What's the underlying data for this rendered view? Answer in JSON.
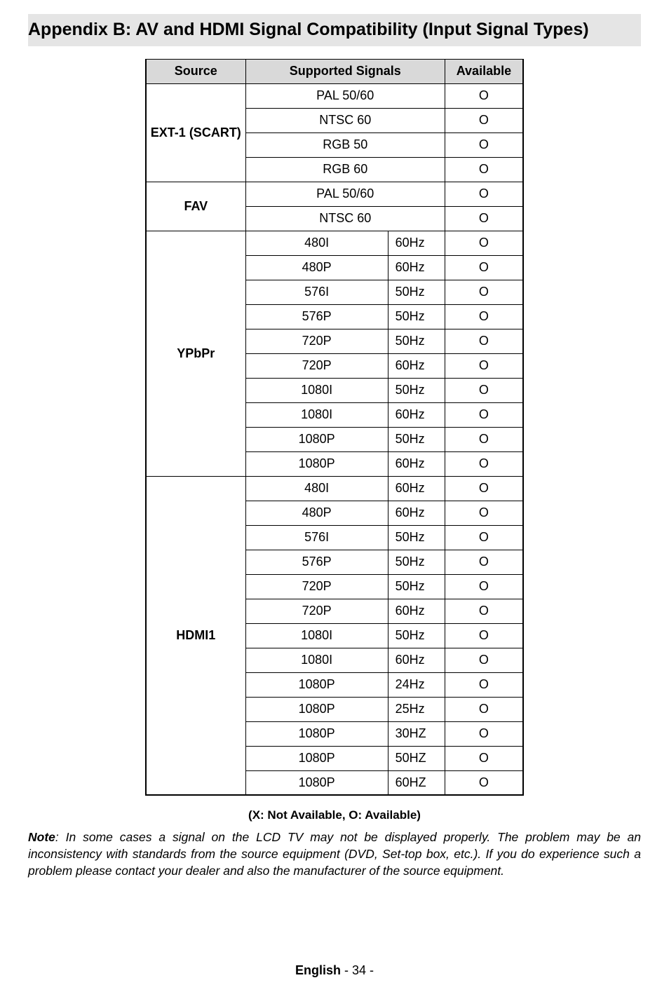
{
  "title": "Appendix B: AV and HDMI Signal Compatibility (Input Signal Types)",
  "headers": {
    "source": "Source",
    "signals": "Supported Signals",
    "available": "Available"
  },
  "sources": [
    {
      "name": "EXT-1 (SCART)",
      "rows": [
        {
          "sig": "PAL 50/60",
          "hz": "",
          "avail": "O",
          "span": true
        },
        {
          "sig": "NTSC 60",
          "hz": "",
          "avail": "O",
          "span": true
        },
        {
          "sig": "RGB 50",
          "hz": "",
          "avail": "O",
          "span": true
        },
        {
          "sig": "RGB 60",
          "hz": "",
          "avail": "O",
          "span": true
        }
      ]
    },
    {
      "name": "FAV",
      "rows": [
        {
          "sig": "PAL 50/60",
          "hz": "",
          "avail": "O",
          "span": true
        },
        {
          "sig": "NTSC 60",
          "hz": "",
          "avail": "O",
          "span": true
        }
      ]
    },
    {
      "name": "YPbPr",
      "rows": [
        {
          "sig": "480I",
          "hz": "60Hz",
          "avail": "O"
        },
        {
          "sig": "480P",
          "hz": "60Hz",
          "avail": "O"
        },
        {
          "sig": "576I",
          "hz": "50Hz",
          "avail": "O"
        },
        {
          "sig": "576P",
          "hz": "50Hz",
          "avail": "O"
        },
        {
          "sig": "720P",
          "hz": "50Hz",
          "avail": "O"
        },
        {
          "sig": "720P",
          "hz": "60Hz",
          "avail": "O"
        },
        {
          "sig": "1080I",
          "hz": "50Hz",
          "avail": "O"
        },
        {
          "sig": "1080I",
          "hz": "60Hz",
          "avail": "O"
        },
        {
          "sig": "1080P",
          "hz": "50Hz",
          "avail": "O"
        },
        {
          "sig": "1080P",
          "hz": "60Hz",
          "avail": "O"
        }
      ]
    },
    {
      "name": "HDMI1",
      "rows": [
        {
          "sig": "480I",
          "hz": "60Hz",
          "avail": "O"
        },
        {
          "sig": "480P",
          "hz": "60Hz",
          "avail": "O"
        },
        {
          "sig": "576I",
          "hz": "50Hz",
          "avail": "O"
        },
        {
          "sig": "576P",
          "hz": "50Hz",
          "avail": "O"
        },
        {
          "sig": "720P",
          "hz": "50Hz",
          "avail": "O"
        },
        {
          "sig": "720P",
          "hz": "60Hz",
          "avail": "O"
        },
        {
          "sig": "1080I",
          "hz": "50Hz",
          "avail": "O"
        },
        {
          "sig": "1080I",
          "hz": "60Hz",
          "avail": "O"
        },
        {
          "sig": "1080P",
          "hz": "24Hz",
          "avail": "O"
        },
        {
          "sig": "1080P",
          "hz": "25Hz",
          "avail": "O"
        },
        {
          "sig": "1080P",
          "hz": "30HZ",
          "avail": "O"
        },
        {
          "sig": "1080P",
          "hz": "50HZ",
          "avail": "O"
        },
        {
          "sig": "1080P",
          "hz": "60HZ",
          "avail": "O"
        }
      ]
    }
  ],
  "legend": "(X: Not Available, O: Available)",
  "note_label": "Note",
  "note_text": ": In some cases a signal on the LCD TV may not be displayed properly. The problem may be an inconsistency with standards from the source equipment (DVD, Set-top box, etc.). If you do experience such a problem please contact your dealer and also the manufacturer of the source equipment.",
  "footer_lang": "English",
  "footer_page": "   - 34 -"
}
